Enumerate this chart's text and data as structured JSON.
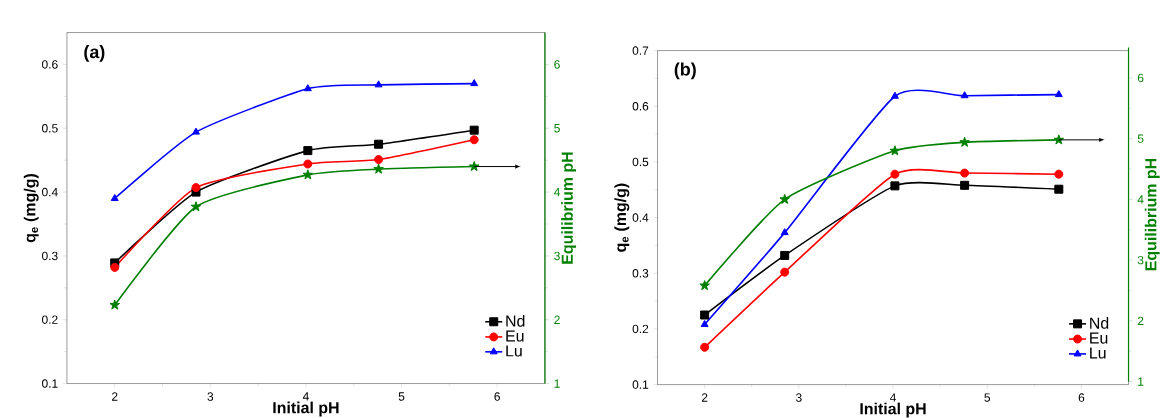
{
  "chart_data": [
    {
      "type": "line",
      "title": "(a)",
      "xlabel": "Initial pH",
      "ylabel": "q$_{e}$ (mg/g)",
      "y2label": "Equilibrium pH",
      "x": [
        2,
        2.85,
        4.02,
        4.76,
        5.76
      ],
      "series": [
        {
          "name": "Nd",
          "color": "#000000",
          "marker": "square",
          "values": [
            0.289,
            0.4,
            0.465,
            0.475,
            0.497
          ]
        },
        {
          "name": "Eu",
          "color": "#ff0000",
          "marker": "circle",
          "values": [
            0.282,
            0.407,
            0.444,
            0.451,
            0.482
          ]
        },
        {
          "name": "Lu",
          "color": "#0000ff",
          "marker": "triangle",
          "values": [
            0.39,
            0.494,
            0.562,
            0.568,
            0.57
          ]
        },
        {
          "color": "#008000",
          "marker": "star",
          "axis": "y2",
          "values": [
            2.23,
            3.77,
            4.27,
            4.36,
            4.4
          ]
        }
      ],
      "xlim": [
        1.5,
        6.5
      ],
      "xticks": [
        2,
        3,
        4,
        5,
        6
      ],
      "ylim": [
        0.1,
        0.65
      ],
      "yticks": [
        0.1,
        0.2,
        0.3,
        0.4,
        0.5,
        0.6
      ],
      "y2lim": [
        1,
        6.5
      ],
      "y2ticks": [
        1,
        2,
        3,
        4,
        5,
        6
      ],
      "legend": "bottom right"
    },
    {
      "type": "line",
      "title": "(b)",
      "xlabel": "Initial pH",
      "ylabel": "q$_{e}$ (mg/g)",
      "y2label": "Equilibrium pH",
      "x": [
        2,
        2.85,
        4.02,
        4.76,
        5.76
      ],
      "series": [
        {
          "name": "Nd",
          "color": "#000000",
          "marker": "square",
          "values": [
            0.225,
            0.332,
            0.457,
            0.458,
            0.451
          ]
        },
        {
          "name": "Eu",
          "color": "#ff0000",
          "marker": "circle",
          "values": [
            0.167,
            0.302,
            0.478,
            0.48,
            0.478
          ]
        },
        {
          "name": "Lu",
          "color": "#0000ff",
          "marker": "triangle",
          "values": [
            0.208,
            0.373,
            0.618,
            0.619,
            0.621
          ]
        },
        {
          "color": "#008000",
          "marker": "star",
          "axis": "y2",
          "values": [
            2.58,
            4.0,
            4.8,
            4.94,
            4.98
          ]
        }
      ],
      "xlim": [
        1.5,
        6.5
      ],
      "xticks": [
        2,
        3,
        4,
        5,
        6
      ],
      "ylim": [
        0.1,
        0.7
      ],
      "yticks": [
        0.1,
        0.2,
        0.3,
        0.4,
        0.5,
        0.6,
        0.7
      ],
      "y2lim": [
        1,
        6.5
      ],
      "y2ticks": [
        1,
        2,
        3,
        4,
        5,
        6
      ],
      "legend": "bottom right"
    }
  ]
}
